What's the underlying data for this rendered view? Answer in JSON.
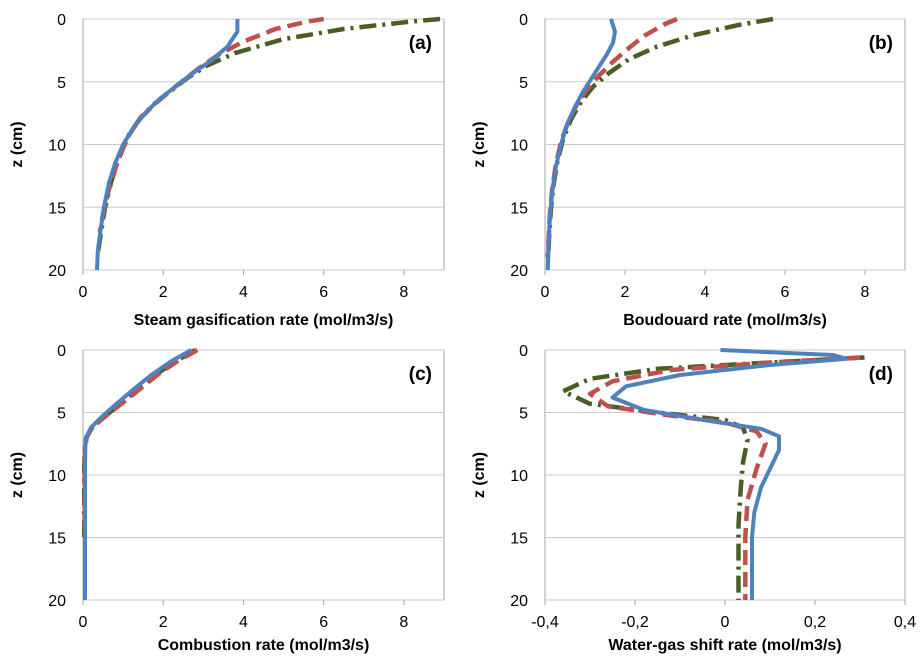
{
  "chart_data": [
    {
      "panel_label": "(a)",
      "type": "line",
      "xlabel": "Steam gasification  rate (mol/m3/s)",
      "ylabel": "z (cm)",
      "xlim": [
        0,
        9
      ],
      "ylim": [
        0,
        20
      ],
      "y_inverted": true,
      "xticks": [
        0,
        2,
        4,
        6,
        8
      ],
      "xtick_labels": [
        "0",
        "2",
        "4",
        "6",
        "8"
      ],
      "yticks": [
        0,
        5,
        10,
        15,
        20
      ],
      "ytick_labels": [
        "0",
        "5",
        "10",
        "15",
        "20"
      ],
      "grid": "horizontal",
      "series": [
        {
          "style": "dash-dot",
          "color": "#4a5e23",
          "points": [
            [
              8.9,
              0
            ],
            [
              8.2,
              0.2
            ],
            [
              6.5,
              0.8
            ],
            [
              5,
              1.6
            ],
            [
              3.8,
              2.7
            ],
            [
              3.1,
              3.7
            ],
            [
              2.6,
              4.7
            ],
            [
              2.2,
              5.7
            ],
            [
              1.8,
              6.7
            ],
            [
              1.45,
              7.8
            ],
            [
              1.15,
              9.2
            ],
            [
              0.9,
              11
            ],
            [
              0.7,
              13
            ],
            [
              0.55,
              15
            ],
            [
              0.45,
              17
            ],
            [
              0.38,
              18.5
            ]
          ]
        },
        {
          "style": "dashed",
          "color": "#c0504d",
          "points": [
            [
              6,
              0
            ],
            [
              5.6,
              0.2
            ],
            [
              4.8,
              0.8
            ],
            [
              4,
              1.8
            ],
            [
              3.4,
              2.8
            ],
            [
              2.9,
              3.9
            ],
            [
              2.5,
              4.9
            ],
            [
              2.1,
              5.9
            ],
            [
              1.75,
              6.9
            ],
            [
              1.4,
              8
            ],
            [
              1.1,
              9.5
            ],
            [
              0.85,
              11.5
            ],
            [
              0.65,
              13.5
            ],
            [
              0.5,
              15.5
            ],
            [
              0.42,
              17
            ]
          ]
        },
        {
          "style": "solid",
          "color": "#4f81bd",
          "points": [
            [
              3.85,
              0
            ],
            [
              3.85,
              1
            ],
            [
              3.6,
              2.2
            ],
            [
              3.2,
              3.3
            ],
            [
              2.7,
              4.4
            ],
            [
              2.3,
              5.4
            ],
            [
              1.9,
              6.4
            ],
            [
              1.55,
              7.5
            ],
            [
              1.25,
              8.7
            ],
            [
              1,
              10
            ],
            [
              0.8,
              11.5
            ],
            [
              0.65,
              13
            ],
            [
              0.52,
              15
            ],
            [
              0.43,
              17
            ],
            [
              0.37,
              18.5
            ],
            [
              0.35,
              20
            ]
          ]
        }
      ]
    },
    {
      "panel_label": "(b)",
      "type": "line",
      "xlabel": "Boudouard rate (mol/m3/s)",
      "ylabel": "z (cm)",
      "xlim": [
        0,
        9
      ],
      "ylim": [
        0,
        20
      ],
      "y_inverted": true,
      "xticks": [
        0,
        2,
        4,
        6,
        8
      ],
      "xtick_labels": [
        "0",
        "2",
        "4",
        "6",
        "8"
      ],
      "yticks": [
        0,
        5,
        10,
        15,
        20
      ],
      "ytick_labels": [
        "0",
        "5",
        "10",
        "15",
        "20"
      ],
      "grid": "horizontal",
      "series": [
        {
          "style": "dash-dot",
          "color": "#4a5e23",
          "points": [
            [
              5.7,
              0
            ],
            [
              4.8,
              0.5
            ],
            [
              3.7,
              1.3
            ],
            [
              2.8,
              2.2
            ],
            [
              2.1,
              3.2
            ],
            [
              1.6,
              4.3
            ],
            [
              1.2,
              5.4
            ],
            [
              0.9,
              6.6
            ],
            [
              0.65,
              8
            ],
            [
              0.45,
              9.6
            ],
            [
              0.3,
              11.5
            ],
            [
              0.2,
              13.5
            ],
            [
              0.14,
              15.5
            ],
            [
              0.1,
              17.5
            ],
            [
              0.08,
              19
            ]
          ]
        },
        {
          "style": "dashed",
          "color": "#c0504d",
          "points": [
            [
              3.3,
              0
            ],
            [
              3,
              0.4
            ],
            [
              2.5,
              1.3
            ],
            [
              2.1,
              2.3
            ],
            [
              1.7,
              3.4
            ],
            [
              1.35,
              4.5
            ],
            [
              1.05,
              5.6
            ],
            [
              0.8,
              6.8
            ],
            [
              0.58,
              8.2
            ],
            [
              0.4,
              9.8
            ],
            [
              0.27,
              11.6
            ],
            [
              0.18,
              13.6
            ],
            [
              0.12,
              15.6
            ],
            [
              0.09,
              17.5
            ],
            [
              0.07,
              19
            ]
          ]
        },
        {
          "style": "solid",
          "color": "#4f81bd",
          "points": [
            [
              1.65,
              0
            ],
            [
              1.75,
              1
            ],
            [
              1.7,
              1.9
            ],
            [
              1.55,
              2.8
            ],
            [
              1.35,
              3.8
            ],
            [
              1.15,
              4.8
            ],
            [
              0.95,
              5.8
            ],
            [
              0.75,
              7
            ],
            [
              0.55,
              8.4
            ],
            [
              0.4,
              10
            ],
            [
              0.27,
              11.8
            ],
            [
              0.18,
              13.8
            ],
            [
              0.12,
              15.8
            ],
            [
              0.09,
              17.8
            ],
            [
              0.07,
              20
            ]
          ]
        }
      ]
    },
    {
      "panel_label": "(c)",
      "type": "line",
      "xlabel": "Combustion rate (mol/m3/s)",
      "ylabel": "z (cm)",
      "xlim": [
        0,
        9
      ],
      "ylim": [
        0,
        20
      ],
      "y_inverted": true,
      "xticks": [
        0,
        2,
        4,
        6,
        8
      ],
      "xtick_labels": [
        "0",
        "2",
        "4",
        "6",
        "8"
      ],
      "yticks": [
        0,
        5,
        10,
        15,
        20
      ],
      "ytick_labels": [
        "0",
        "5",
        "10",
        "15",
        "20"
      ],
      "grid": "horizontal",
      "series": [
        {
          "style": "dash-dot",
          "color": "#4a5e23",
          "points": [
            [
              2.8,
              0
            ],
            [
              2.3,
              0.9
            ],
            [
              1.8,
              2
            ],
            [
              1.3,
              3.3
            ],
            [
              0.9,
              4.4
            ],
            [
              0.5,
              5.4
            ],
            [
              0.22,
              6.2
            ],
            [
              0.08,
              7
            ],
            [
              0.04,
              8
            ],
            [
              0.03,
              10
            ],
            [
              0.03,
              15
            ]
          ]
        },
        {
          "style": "dashed",
          "color": "#c0504d",
          "points": [
            [
              2.85,
              0
            ],
            [
              2.35,
              0.9
            ],
            [
              1.85,
              2
            ],
            [
              1.35,
              3.3
            ],
            [
              0.92,
              4.4
            ],
            [
              0.52,
              5.4
            ],
            [
              0.23,
              6.2
            ],
            [
              0.09,
              7
            ],
            [
              0.05,
              8
            ],
            [
              0.04,
              10
            ],
            [
              0.04,
              15
            ]
          ]
        },
        {
          "style": "solid",
          "color": "#4f81bd",
          "points": [
            [
              2.7,
              0
            ],
            [
              2.2,
              0.9
            ],
            [
              1.7,
              2
            ],
            [
              1.2,
              3.3
            ],
            [
              0.8,
              4.4
            ],
            [
              0.45,
              5.4
            ],
            [
              0.2,
              6.2
            ],
            [
              0.08,
              7
            ],
            [
              0.05,
              8
            ],
            [
              0.05,
              10
            ],
            [
              0.05,
              15
            ],
            [
              0.05,
              20
            ]
          ]
        }
      ]
    },
    {
      "panel_label": "(d)",
      "type": "line",
      "xlabel": "Water-gas shift rate (mol/m3/s)",
      "ylabel": "z (cm)",
      "xlim": [
        -0.4,
        0.4
      ],
      "ylim": [
        0,
        20
      ],
      "y_inverted": true,
      "xticks": [
        -0.4,
        -0.2,
        0,
        0.2,
        0.4
      ],
      "xtick_labels": [
        "-0,4",
        "-0,2",
        "0",
        "0,2",
        "0,4"
      ],
      "yticks": [
        0,
        5,
        10,
        15,
        20
      ],
      "ytick_labels": [
        "0",
        "5",
        "10",
        "15",
        "20"
      ],
      "grid": "horizontal",
      "series": [
        {
          "style": "dash-dot",
          "color": "#4a5e23",
          "points": [
            [
              0.31,
              0.6
            ],
            [
              0.1,
              1
            ],
            [
              -0.15,
              1.5
            ],
            [
              -0.3,
              2.3
            ],
            [
              -0.36,
              3.3
            ],
            [
              -0.3,
              4.3
            ],
            [
              -0.15,
              5
            ],
            [
              0,
              5.6
            ],
            [
              0.04,
              6.2
            ],
            [
              0.05,
              7.2
            ],
            [
              0.04,
              9
            ],
            [
              0.035,
              11
            ],
            [
              0.03,
              14
            ],
            [
              0.03,
              17
            ],
            [
              0.03,
              20
            ]
          ]
        },
        {
          "style": "dashed",
          "color": "#c0504d",
          "points": [
            [
              0.3,
              0.6
            ],
            [
              0.1,
              1
            ],
            [
              -0.12,
              1.6
            ],
            [
              -0.25,
              2.5
            ],
            [
              -0.3,
              3.5
            ],
            [
              -0.26,
              4.5
            ],
            [
              -0.13,
              5.2
            ],
            [
              0,
              5.8
            ],
            [
              0.07,
              6.5
            ],
            [
              0.09,
              7.5
            ],
            [
              0.07,
              9.5
            ],
            [
              0.05,
              12
            ],
            [
              0.045,
              15
            ],
            [
              0.045,
              18
            ],
            [
              0.045,
              20
            ]
          ]
        },
        {
          "style": "solid",
          "color": "#4f81bd",
          "points": [
            [
              -0.01,
              0
            ],
            [
              0.24,
              0.4
            ],
            [
              0.27,
              0.7
            ],
            [
              0.1,
              1.2
            ],
            [
              -0.1,
              2
            ],
            [
              -0.22,
              2.9
            ],
            [
              -0.25,
              3.8
            ],
            [
              -0.18,
              4.8
            ],
            [
              -0.03,
              5.7
            ],
            [
              0.08,
              6.3
            ],
            [
              0.12,
              6.9
            ],
            [
              0.12,
              8
            ],
            [
              0.1,
              9.5
            ],
            [
              0.08,
              11
            ],
            [
              0.065,
              13
            ],
            [
              0.06,
              15
            ],
            [
              0.06,
              18
            ],
            [
              0.06,
              20
            ]
          ]
        }
      ]
    }
  ]
}
